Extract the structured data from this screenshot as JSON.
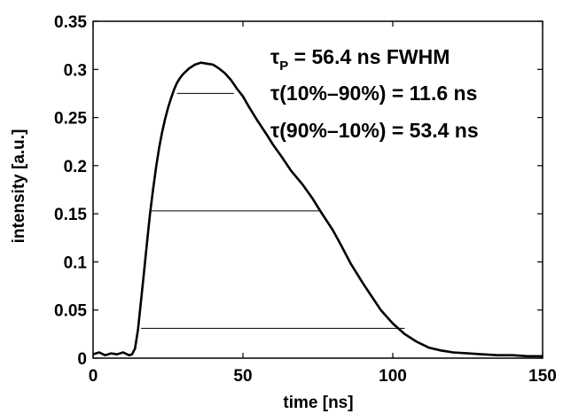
{
  "chart_data": {
    "type": "line",
    "title": "",
    "xlabel": "time [ns]",
    "ylabel": "intensity [a.u.]",
    "xlim": [
      0,
      150
    ],
    "ylim": [
      0,
      0.35
    ],
    "x_ticks": [
      0,
      50,
      100,
      150
    ],
    "x_tick_labels": [
      "0",
      "50",
      "100",
      "150"
    ],
    "y_ticks": [
      0,
      0.05,
      0.1,
      0.15,
      0.2,
      0.25,
      0.3,
      0.35
    ],
    "y_tick_labels": [
      "0",
      "0.05",
      "0.1",
      "0.15",
      "0.2",
      "0.25",
      "0.3",
      "0.35"
    ],
    "grid": false,
    "legend": "none",
    "series": [
      {
        "x": [
          0,
          2,
          4,
          6,
          8,
          10,
          12,
          13,
          14,
          15,
          16,
          17,
          18,
          19,
          20,
          21,
          22,
          23,
          24,
          25,
          26,
          27,
          28,
          29,
          30,
          32,
          34,
          36,
          38,
          40,
          42,
          44,
          46,
          48,
          50,
          52,
          55,
          58,
          60,
          63,
          66,
          70,
          73,
          76,
          80,
          83,
          86,
          90,
          93,
          96,
          100,
          104,
          108,
          112,
          116,
          120,
          125,
          130,
          135,
          140,
          145,
          150
        ],
        "values": [
          0.004,
          0.006,
          0.003,
          0.005,
          0.004,
          0.006,
          0.003,
          0.004,
          0.01,
          0.03,
          0.06,
          0.09,
          0.12,
          0.15,
          0.175,
          0.198,
          0.218,
          0.234,
          0.248,
          0.26,
          0.27,
          0.279,
          0.286,
          0.291,
          0.295,
          0.301,
          0.305,
          0.307,
          0.306,
          0.305,
          0.301,
          0.296,
          0.289,
          0.28,
          0.272,
          0.261,
          0.246,
          0.232,
          0.222,
          0.209,
          0.195,
          0.18,
          0.167,
          0.152,
          0.133,
          0.116,
          0.098,
          0.078,
          0.064,
          0.05,
          0.036,
          0.025,
          0.017,
          0.011,
          0.008,
          0.006,
          0.005,
          0.004,
          0.003,
          0.003,
          0.002,
          0.002
        ]
      }
    ],
    "reference_lines": [
      {
        "y": 0.275,
        "x_start": 28,
        "x_end": 47
      },
      {
        "y": 0.153,
        "x_start": 19.5,
        "x_end": 76
      },
      {
        "y": 0.031,
        "x_start": 16,
        "x_end": 104
      }
    ],
    "annotations": {
      "line1_main": "τ",
      "line1_sub": "P",
      "line1_rest": " = 56.4 ns FWHM",
      "line2": "τ(10%–90%) = 11.6 ns",
      "line3": "τ(90%–10%) = 53.4 ns"
    }
  }
}
